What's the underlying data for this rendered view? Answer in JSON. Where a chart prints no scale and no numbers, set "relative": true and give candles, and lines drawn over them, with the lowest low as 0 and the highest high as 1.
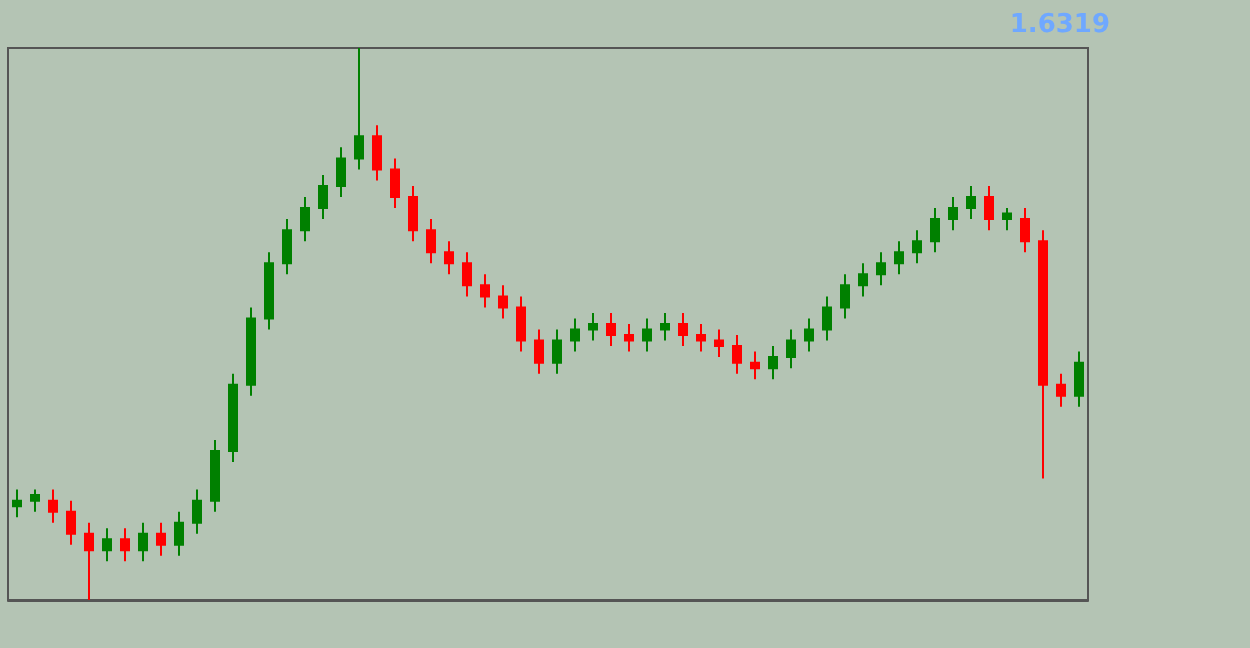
{
  "chart_data": {
    "type": "candlestick",
    "relative": true,
    "grid": false,
    "categories": [
      null,
      null,
      null,
      null,
      null,
      null,
      null,
      null,
      null,
      null,
      null,
      null,
      null,
      null,
      null,
      null,
      null,
      null,
      null,
      null,
      null,
      null,
      null,
      null,
      null,
      null,
      null,
      null,
      null,
      null,
      null,
      null,
      null,
      null,
      null,
      null,
      null,
      null,
      null,
      null,
      null,
      null,
      null,
      null,
      null,
      null,
      null,
      null,
      null,
      null,
      null,
      null,
      null,
      null,
      null,
      null,
      null,
      null,
      null,
      null
    ],
    "ohlc": [
      [
        0.17,
        0.2,
        0.15,
        0.18
      ],
      [
        0.18,
        0.2,
        0.16,
        0.19
      ],
      [
        0.18,
        0.2,
        0.14,
        0.16
      ],
      [
        0.16,
        0.18,
        0.1,
        0.12
      ],
      [
        0.12,
        0.14,
        0,
        0.09
      ],
      [
        0.09,
        0.13,
        0.07,
        0.11
      ],
      [
        0.11,
        0.13,
        0.07,
        0.09
      ],
      [
        0.09,
        0.14,
        0.07,
        0.12
      ],
      [
        0.12,
        0.14,
        0.08,
        0.1
      ],
      [
        0.1,
        0.16,
        0.08,
        0.14
      ],
      [
        0.14,
        0.2,
        0.12,
        0.18
      ],
      [
        0.18,
        0.29,
        0.16,
        0.27
      ],
      [
        0.27,
        0.41,
        0.25,
        0.39
      ],
      [
        0.39,
        0.53,
        0.37,
        0.51
      ],
      [
        0.51,
        0.63,
        0.49,
        0.61
      ],
      [
        0.61,
        0.69,
        0.59,
        0.67
      ],
      [
        0.67,
        0.73,
        0.65,
        0.71
      ],
      [
        0.71,
        0.77,
        0.69,
        0.75
      ],
      [
        0.75,
        0.82,
        0.73,
        0.8
      ],
      [
        0.8,
        1,
        0.78,
        0.84
      ],
      [
        0.84,
        0.86,
        0.76,
        0.78
      ],
      [
        0.78,
        0.8,
        0.71,
        0.73
      ],
      [
        0.73,
        0.75,
        0.65,
        0.67
      ],
      [
        0.67,
        0.69,
        0.61,
        0.63
      ],
      [
        0.63,
        0.65,
        0.59,
        0.61
      ],
      [
        0.61,
        0.63,
        0.55,
        0.57
      ],
      [
        0.57,
        0.59,
        0.53,
        0.55
      ],
      [
        0.55,
        0.57,
        0.51,
        0.53
      ],
      [
        0.53,
        0.55,
        0.45,
        0.47
      ],
      [
        0.47,
        0.49,
        0.41,
        0.43
      ],
      [
        0.43,
        0.49,
        0.41,
        0.47
      ],
      [
        0.47,
        0.51,
        0.45,
        0.49
      ],
      [
        0.49,
        0.52,
        0.47,
        0.5
      ],
      [
        0.5,
        0.52,
        0.46,
        0.48
      ],
      [
        0.48,
        0.5,
        0.45,
        0.47
      ],
      [
        0.47,
        0.51,
        0.45,
        0.49
      ],
      [
        0.49,
        0.52,
        0.47,
        0.5
      ],
      [
        0.5,
        0.52,
        0.46,
        0.48
      ],
      [
        0.48,
        0.5,
        0.45,
        0.47
      ],
      [
        0.47,
        0.49,
        0.44,
        0.46
      ],
      [
        0.46,
        0.48,
        0.41,
        0.43
      ],
      [
        0.43,
        0.45,
        0.4,
        0.42
      ],
      [
        0.42,
        0.46,
        0.4,
        0.44
      ],
      [
        0.44,
        0.49,
        0.42,
        0.47
      ],
      [
        0.47,
        0.51,
        0.45,
        0.49
      ],
      [
        0.49,
        0.55,
        0.47,
        0.53
      ],
      [
        0.53,
        0.59,
        0.51,
        0.57
      ],
      [
        0.57,
        0.61,
        0.55,
        0.59
      ],
      [
        0.59,
        0.63,
        0.57,
        0.61
      ],
      [
        0.61,
        0.65,
        0.59,
        0.63
      ],
      [
        0.63,
        0.67,
        0.61,
        0.65
      ],
      [
        0.65,
        0.71,
        0.63,
        0.69
      ],
      [
        0.69,
        0.73,
        0.67,
        0.71
      ],
      [
        0.71,
        0.75,
        0.69,
        0.73
      ],
      [
        0.73,
        0.75,
        0.67,
        0.69
      ],
      [
        0.69,
        0.71,
        0.67,
        0.7
      ],
      [
        0.69,
        0.71,
        0.63,
        0.65
      ],
      [
        0.65,
        0.67,
        0.22,
        0.39
      ],
      [
        0.39,
        0.41,
        0.35,
        0.37
      ],
      [
        0.37,
        0.45,
        0.35,
        0.43
      ]
    ],
    "annotations": [
      "1.6319"
    ]
  }
}
